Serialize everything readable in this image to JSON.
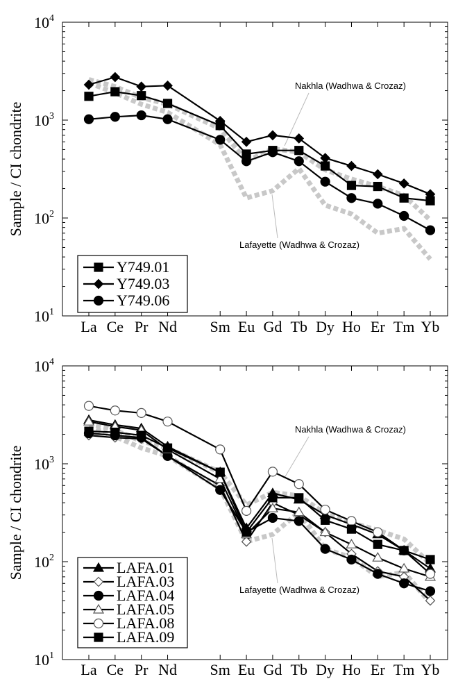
{
  "chart_data": [
    {
      "type": "line",
      "y_scale": "log",
      "ylim": [
        10,
        10000
      ],
      "ylabel": "Sample / CI chondrite",
      "y_ticks": [
        {
          "value": 10,
          "base": "10",
          "exp": "1"
        },
        {
          "value": 100,
          "base": "10",
          "exp": "2"
        },
        {
          "value": 1000,
          "base": "10",
          "exp": "3"
        },
        {
          "value": 10000,
          "base": "10",
          "exp": "4"
        }
      ],
      "x_positions": {
        "La": 1,
        "Ce": 2,
        "Pr": 3,
        "Nd": 4,
        "Sm": 6,
        "Eu": 7,
        "Gd": 8,
        "Tb": 9,
        "Dy": 10,
        "Ho": 11,
        "Er": 12,
        "Tm": 13,
        "Yb": 14
      },
      "categories": [
        "La",
        "Ce",
        "Pr",
        "Nd",
        "Sm",
        "Eu",
        "Gd",
        "Tb",
        "Dy",
        "Ho",
        "Er",
        "Tm",
        "Yb"
      ],
      "reference_series": [
        {
          "label": "Nakhla (Wadhwa & Crozaz)",
          "color": "#c8c8c8",
          "values": [
            2600,
            2200,
            1700,
            1450,
            820,
            380,
            510,
            470,
            310,
            250,
            210,
            170,
            95
          ]
        },
        {
          "label": "Lafayette (Wadhwa & Crozaz)",
          "color": "#c8c8c8",
          "values": [
            2400,
            1900,
            1450,
            1200,
            560,
            160,
            190,
            320,
            135,
            110,
            70,
            78,
            38
          ]
        }
      ],
      "series": [
        {
          "name": "Y749.01",
          "marker": "square-filled",
          "values": [
            1750,
            1950,
            1780,
            1480,
            880,
            450,
            490,
            490,
            340,
            215,
            210,
            160,
            150
          ]
        },
        {
          "name": "Y749.03",
          "marker": "diamond-filled",
          "values": [
            2300,
            2750,
            2200,
            2250,
            980,
            600,
            700,
            650,
            410,
            340,
            280,
            225,
            175
          ]
        },
        {
          "name": "Y749.06",
          "marker": "circle-filled",
          "values": [
            1020,
            1080,
            1120,
            1020,
            630,
            380,
            470,
            380,
            235,
            160,
            140,
            105,
            75
          ]
        }
      ]
    },
    {
      "type": "line",
      "y_scale": "log",
      "ylim": [
        10,
        10000
      ],
      "ylabel": "Sample / CI chondrite",
      "y_ticks": [
        {
          "value": 10,
          "base": "10",
          "exp": "1"
        },
        {
          "value": 100,
          "base": "10",
          "exp": "2"
        },
        {
          "value": 1000,
          "base": "10",
          "exp": "3"
        },
        {
          "value": 10000,
          "base": "10",
          "exp": "4"
        }
      ],
      "x_positions": {
        "La": 1,
        "Ce": 2,
        "Pr": 3,
        "Nd": 4,
        "Sm": 6,
        "Eu": 7,
        "Gd": 8,
        "Tb": 9,
        "Dy": 10,
        "Ho": 11,
        "Er": 12,
        "Tm": 13,
        "Yb": 14
      },
      "categories": [
        "La",
        "Ce",
        "Pr",
        "Nd",
        "Sm",
        "Eu",
        "Gd",
        "Tb",
        "Dy",
        "Ho",
        "Er",
        "Tm",
        "Yb"
      ],
      "reference_series": [
        {
          "label": "Nakhla (Wadhwa & Crozaz)",
          "color": "#c8c8c8",
          "values": [
            2600,
            2200,
            1700,
            1450,
            820,
            380,
            510,
            470,
            310,
            250,
            210,
            170,
            95
          ]
        },
        {
          "label": "Lafayette (Wadhwa & Crozaz)",
          "color": "#c8c8c8",
          "values": [
            2400,
            1900,
            1450,
            1200,
            560,
            160,
            190,
            320,
            135,
            110,
            70,
            78,
            38
          ]
        }
      ],
      "series": [
        {
          "name": "LAFA.01",
          "marker": "triangle-filled",
          "values": [
            2800,
            2500,
            2300,
            1500,
            820,
            220,
            500,
            430,
            300,
            240,
            190,
            130,
            85
          ]
        },
        {
          "name": "LAFA.03",
          "marker": "diamond-open",
          "values": [
            1950,
            1850,
            1800,
            1200,
            600,
            160,
            400,
            300,
            200,
            120,
            80,
            70,
            40
          ]
        },
        {
          "name": "LAFA.04",
          "marker": "circle-filled",
          "values": [
            2050,
            1950,
            1850,
            1200,
            540,
            200,
            280,
            260,
            135,
            105,
            75,
            60,
            50
          ]
        },
        {
          "name": "LAFA.05",
          "marker": "triangle-open",
          "values": [
            2700,
            2400,
            2200,
            1400,
            700,
            190,
            350,
            320,
            200,
            150,
            110,
            85,
            70
          ]
        },
        {
          "name": "LAFA.08",
          "marker": "circle-open",
          "values": [
            3900,
            3500,
            3300,
            2700,
            1400,
            330,
            830,
            620,
            340,
            260,
            200,
            130,
            75
          ]
        },
        {
          "name": "LAFA.09",
          "marker": "square-filled",
          "values": [
            2150,
            2100,
            1950,
            1450,
            820,
            200,
            450,
            450,
            265,
            215,
            150,
            130,
            105
          ]
        }
      ]
    }
  ]
}
